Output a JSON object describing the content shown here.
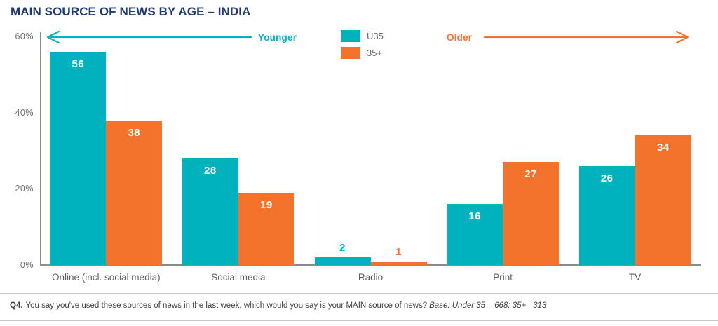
{
  "title": "MAIN SOURCE OF NEWS BY AGE – INDIA",
  "colors": {
    "teal": "#00B2BE",
    "orange": "#F4732C",
    "title_navy": "#21396F",
    "axis_gray": "#8A8C8E",
    "label_gray": "#5E5F61",
    "bar_value_white": "#FFFFFF"
  },
  "annotations": {
    "younger_label": "Younger",
    "older_label": "Older"
  },
  "legend": {
    "items": [
      {
        "label": "U35",
        "color": "#00B2BE"
      },
      {
        "label": "35+",
        "color": "#F4732C"
      }
    ]
  },
  "footnote": {
    "prefix": "Q4.",
    "question": "You say you've used these sources of news in the last week, which would you say is your MAIN source of news?",
    "base": "Base: Under 35 = 668; 35+ =313"
  },
  "chart_data": {
    "type": "bar",
    "title": "MAIN SOURCE OF NEWS BY AGE – INDIA",
    "categories": [
      "Online (incl. social media)",
      "Social media",
      "Radio",
      "Print",
      "TV"
    ],
    "series": [
      {
        "name": "U35",
        "color": "#00B2BE",
        "values": [
          56,
          28,
          2,
          16,
          26
        ]
      },
      {
        "name": "35+",
        "color": "#F4732C",
        "values": [
          38,
          19,
          1,
          27,
          34
        ]
      }
    ],
    "xlabel": "",
    "ylabel": "",
    "ylim": [
      0,
      60
    ],
    "y_tick_values": [
      0,
      20,
      40,
      60
    ],
    "y_tick_labels": [
      "0%",
      "20%",
      "40%",
      "60%"
    ],
    "grid": false,
    "legend_position": "top-center",
    "value_labels": "shown"
  }
}
